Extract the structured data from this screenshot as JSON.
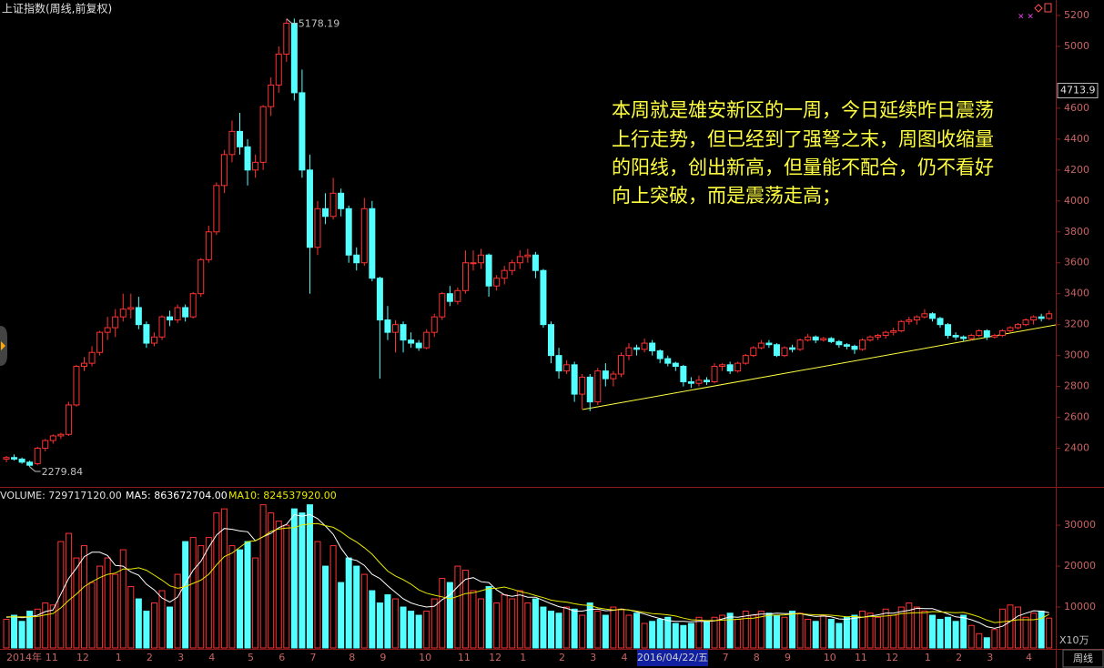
{
  "chart_data": {
    "type": "candlestick",
    "title": "上证指数(周线,前复权)",
    "categories": [
      "2014年",
      null,
      null,
      null,
      null,
      "11",
      null,
      null,
      null,
      "12",
      null,
      null,
      null,
      null,
      "1",
      null,
      null,
      null,
      "2",
      null,
      null,
      null,
      "3",
      null,
      null,
      null,
      "4",
      null,
      null,
      null,
      null,
      "5",
      null,
      null,
      null,
      "6",
      null,
      null,
      null,
      "7",
      null,
      null,
      null,
      null,
      "8",
      null,
      null,
      null,
      "9",
      null,
      null,
      null,
      null,
      "10",
      null,
      null,
      null,
      null,
      "11",
      null,
      null,
      null,
      "12",
      null,
      null,
      null,
      "1",
      null,
      null,
      null,
      null,
      "2",
      null,
      null,
      null,
      "3",
      null,
      null,
      null,
      "4",
      null,
      null,
      null,
      null,
      null,
      null,
      null,
      null,
      null,
      null,
      null,
      null,
      "7",
      null,
      null,
      null,
      "8",
      null,
      null,
      null,
      "9",
      null,
      null,
      null,
      null,
      "10",
      null,
      null,
      null,
      "11",
      null,
      null,
      null,
      "12",
      null,
      null,
      null,
      null,
      "1",
      null,
      null,
      null,
      "2",
      null,
      null,
      null,
      "3",
      null,
      null,
      null,
      null,
      "4",
      null,
      null,
      null
    ],
    "ohlc": [
      [
        2330,
        2350,
        2310,
        2340
      ],
      [
        2340,
        2360,
        2320,
        2330
      ],
      [
        2330,
        2340,
        2300,
        2310
      ],
      [
        2310,
        2320,
        2279.84,
        2290
      ],
      [
        2300,
        2410,
        2290,
        2400
      ],
      [
        2400,
        2460,
        2380,
        2450
      ],
      [
        2450,
        2490,
        2430,
        2480
      ],
      [
        2480,
        2500,
        2460,
        2490
      ],
      [
        2490,
        2700,
        2480,
        2680
      ],
      [
        2680,
        2940,
        2670,
        2930
      ],
      [
        2930,
        2990,
        2900,
        2950
      ],
      [
        2950,
        3060,
        2930,
        3020
      ],
      [
        3020,
        3160,
        3000,
        3150
      ],
      [
        3150,
        3250,
        3100,
        3180
      ],
      [
        3180,
        3300,
        3120,
        3250
      ],
      [
        3250,
        3400,
        3220,
        3300
      ],
      [
        3300,
        3400,
        3240,
        3310
      ],
      [
        3310,
        3380,
        3170,
        3200
      ],
      [
        3200,
        3220,
        3050,
        3080
      ],
      [
        3080,
        3150,
        3060,
        3120
      ],
      [
        3120,
        3260,
        3100,
        3250
      ],
      [
        3250,
        3290,
        3190,
        3230
      ],
      [
        3230,
        3330,
        3210,
        3310
      ],
      [
        3310,
        3330,
        3220,
        3250
      ],
      [
        3250,
        3410,
        3240,
        3400
      ],
      [
        3400,
        3630,
        3380,
        3620
      ],
      [
        3620,
        3840,
        3600,
        3800
      ],
      [
        3800,
        4120,
        3780,
        4100
      ],
      [
        4100,
        4330,
        4050,
        4300
      ],
      [
        4300,
        4520,
        4250,
        4450
      ],
      [
        4450,
        4570,
        4300,
        4350
      ],
      [
        4350,
        4400,
        4100,
        4200
      ],
      [
        4200,
        4300,
        4150,
        4250
      ],
      [
        4250,
        4620,
        4200,
        4610
      ],
      [
        4610,
        4800,
        4550,
        4750
      ],
      [
        4750,
        5000,
        4700,
        4950
      ],
      [
        4950,
        5178.19,
        4900,
        5150
      ],
      [
        5150,
        5180,
        4650,
        4700
      ],
      [
        4700,
        4850,
        4150,
        4200
      ],
      [
        4200,
        4300,
        3400,
        3700
      ],
      [
        3700,
        4000,
        3650,
        3950
      ],
      [
        3950,
        4050,
        3850,
        3900
      ],
      [
        3900,
        4150,
        3880,
        4050
      ],
      [
        4050,
        4080,
        3900,
        3950
      ],
      [
        3950,
        3970,
        3600,
        3650
      ],
      [
        3650,
        3700,
        3550,
        3600
      ],
      [
        3600,
        4020,
        3580,
        3950
      ],
      [
        3950,
        4000,
        3480,
        3500
      ],
      [
        3500,
        3510,
        2850,
        3230
      ],
      [
        3230,
        3320,
        3100,
        3150
      ],
      [
        3150,
        3230,
        3020,
        3200
      ],
      [
        3200,
        3220,
        3020,
        3100
      ],
      [
        3100,
        3150,
        3050,
        3080
      ],
      [
        3080,
        3100,
        3030,
        3050
      ],
      [
        3050,
        3170,
        3040,
        3150
      ],
      [
        3150,
        3270,
        3120,
        3250
      ],
      [
        3250,
        3410,
        3230,
        3400
      ],
      [
        3400,
        3450,
        3320,
        3350
      ],
      [
        3350,
        3440,
        3330,
        3420
      ],
      [
        3420,
        3680,
        3400,
        3600
      ],
      [
        3600,
        3680,
        3550,
        3600
      ],
      [
        3600,
        3690,
        3560,
        3650
      ],
      [
        3650,
        3660,
        3380,
        3450
      ],
      [
        3450,
        3520,
        3420,
        3500
      ],
      [
        3500,
        3580,
        3460,
        3550
      ],
      [
        3550,
        3620,
        3520,
        3600
      ],
      [
        3600,
        3680,
        3560,
        3640
      ],
      [
        3640,
        3690,
        3600,
        3650
      ],
      [
        3650,
        3670,
        3500,
        3550
      ],
      [
        3550,
        3560,
        3180,
        3200
      ],
      [
        3200,
        3220,
        2950,
        3000
      ],
      [
        3000,
        3050,
        2850,
        2900
      ],
      [
        2900,
        2970,
        2880,
        2940
      ],
      [
        2940,
        2960,
        2700,
        2750
      ],
      [
        2750,
        2880,
        2650,
        2860
      ],
      [
        2860,
        2880,
        2640,
        2700
      ],
      [
        2700,
        2920,
        2680,
        2900
      ],
      [
        2900,
        2950,
        2800,
        2850
      ],
      [
        2850,
        2900,
        2800,
        2880
      ],
      [
        2880,
        3020,
        2860,
        3000
      ],
      [
        3000,
        3080,
        2970,
        3050
      ],
      [
        3050,
        3070,
        3000,
        3040
      ],
      [
        3040,
        3110,
        3020,
        3080
      ],
      [
        3080,
        3100,
        3000,
        3030
      ],
      [
        3030,
        3040,
        2950,
        2980
      ],
      [
        2980,
        3000,
        2930,
        2950
      ],
      [
        2950,
        2960,
        2900,
        2930
      ],
      [
        2930,
        2940,
        2800,
        2830
      ],
      [
        2830,
        2860,
        2790,
        2820
      ],
      [
        2820,
        2870,
        2800,
        2840
      ],
      [
        2840,
        2860,
        2810,
        2830
      ],
      [
        2830,
        2950,
        2820,
        2930
      ],
      [
        2930,
        2950,
        2900,
        2940
      ],
      [
        2940,
        2960,
        2880,
        2900
      ],
      [
        2900,
        2960,
        2890,
        2950
      ],
      [
        2950,
        3010,
        2940,
        3000
      ],
      [
        3000,
        3060,
        2990,
        3050
      ],
      [
        3050,
        3100,
        3040,
        3080
      ],
      [
        3080,
        3100,
        3050,
        3070
      ],
      [
        3070,
        3080,
        2990,
        3000
      ],
      [
        3000,
        3060,
        2990,
        3050
      ],
      [
        3050,
        3070,
        3020,
        3040
      ],
      [
        3040,
        3110,
        3030,
        3100
      ],
      [
        3100,
        3140,
        3090,
        3120
      ],
      [
        3120,
        3130,
        3080,
        3100
      ],
      [
        3100,
        3120,
        3090,
        3110
      ],
      [
        3110,
        3120,
        3080,
        3090
      ],
      [
        3090,
        3100,
        3050,
        3070
      ],
      [
        3070,
        3080,
        3040,
        3060
      ],
      [
        3060,
        3070,
        3010,
        3040
      ],
      [
        3040,
        3110,
        3030,
        3100
      ],
      [
        3100,
        3130,
        3090,
        3120
      ],
      [
        3120,
        3140,
        3100,
        3130
      ],
      [
        3130,
        3160,
        3110,
        3150
      ],
      [
        3150,
        3180,
        3130,
        3160
      ],
      [
        3160,
        3230,
        3150,
        3220
      ],
      [
        3220,
        3250,
        3200,
        3230
      ],
      [
        3230,
        3260,
        3200,
        3250
      ],
      [
        3250,
        3300,
        3240,
        3270
      ],
      [
        3270,
        3280,
        3220,
        3240
      ],
      [
        3240,
        3250,
        3180,
        3200
      ],
      [
        3200,
        3210,
        3110,
        3130
      ],
      [
        3130,
        3150,
        3100,
        3120
      ],
      [
        3120,
        3130,
        3090,
        3110
      ],
      [
        3110,
        3140,
        3100,
        3130
      ],
      [
        3130,
        3170,
        3120,
        3160
      ],
      [
        3160,
        3170,
        3100,
        3120
      ],
      [
        3120,
        3140,
        3110,
        3130
      ],
      [
        3130,
        3170,
        3120,
        3160
      ],
      [
        3160,
        3190,
        3150,
        3180
      ],
      [
        3180,
        3210,
        3170,
        3200
      ],
      [
        3200,
        3240,
        3190,
        3230
      ],
      [
        3230,
        3260,
        3200,
        3250
      ],
      [
        3250,
        3270,
        3220,
        3240
      ],
      [
        3240,
        3290,
        3230,
        3270
      ]
    ],
    "up_color": "#ff3232",
    "down_color": "#54ffff",
    "ylim": [
      2150,
      5300
    ],
    "yticks": [
      2400,
      2600,
      2800,
      3000,
      3200,
      3400,
      3600,
      3800,
      4000,
      4200,
      4400,
      4600,
      5000,
      5200
    ],
    "cursor_label": "2016/04/22/五",
    "cursor_price": 4713.9,
    "period_tab": "周线",
    "annotation": [
      "本周就是雄安新区的一周，今日延续昨日震荡",
      "上行走势，但已经到了强弩之末，周图收缩量",
      "的阳线，创出新高，但量能不配合，仍不看好",
      "向上突破，而是震荡走高；"
    ],
    "volume": {
      "header": [
        "VOLUME: 729717120.00",
        "MA5: 863672704.00",
        "MA10: 824537920.00"
      ],
      "unit": "X10万",
      "ylim": [
        0,
        38700
      ],
      "yticks": [
        10000,
        20000,
        30000
      ],
      "values": [
        7000,
        8000,
        6500,
        9000,
        9500,
        11000,
        10500,
        26000,
        28000,
        22000,
        25000,
        16000,
        20000,
        22000,
        18000,
        24000,
        15000,
        12000,
        9000,
        11000,
        14000,
        10000,
        18000,
        26000,
        27000,
        25000,
        27000,
        33000,
        34000,
        25000,
        24000,
        26000,
        22000,
        35000,
        33000,
        31000,
        30000,
        34000,
        33000,
        35000,
        26000,
        20000,
        25000,
        16000,
        22000,
        20000,
        18000,
        14000,
        11000,
        13000,
        12000,
        10000,
        9000,
        8000,
        9000,
        12000,
        17000,
        16000,
        20000,
        19000,
        14000,
        12000,
        15000,
        11000,
        13000,
        12000,
        14000,
        11000,
        12000,
        10000,
        9000,
        8500,
        10000,
        9500,
        8000,
        11000,
        9000,
        8000,
        10000,
        9500,
        8000,
        8500,
        6000,
        6500,
        7000,
        7500,
        6000,
        5500,
        6000,
        7500,
        6500,
        7500,
        8000,
        8500,
        7000,
        9000,
        8000,
        9000,
        8500,
        8000,
        7500,
        9000,
        8500,
        7000,
        6500,
        8000,
        7000,
        6000,
        7500,
        8000,
        9000,
        8500,
        7500,
        9500,
        8000,
        10000,
        11000,
        10000,
        9000,
        8000,
        7000,
        7500,
        6500,
        8000,
        5500,
        3500,
        2500,
        4500,
        9500,
        10500,
        10000,
        7500,
        8500,
        9000,
        7297.1712
      ],
      "ma5": {
        "color": "#ffffff",
        "values": [
          7500,
          7600,
          7400,
          7600,
          8000,
          8900,
          9300,
          13200,
          17000,
          19500,
          22300,
          23400,
          23400,
          22600,
          20200,
          20000,
          18600,
          17800,
          15600,
          14200,
          12200,
          11200,
          12400,
          15800,
          19000,
          21200,
          24600,
          27600,
          29200,
          29000,
          28600,
          28400,
          26200,
          27200,
          28000,
          29400,
          30200,
          32600,
          32200,
          32600,
          31600,
          29800,
          27800,
          24400,
          21800,
          21400,
          20200,
          18000,
          17000,
          15200,
          13600,
          12000,
          11000,
          10400,
          10000,
          10200,
          11800,
          13000,
          15000,
          16800,
          17200,
          16200,
          16000,
          14200,
          13000,
          12600,
          13000,
          12400,
          12400,
          11600,
          10800,
          10100,
          9700,
          9000,
          9000,
          9400,
          9500,
          9100,
          9200,
          9500,
          9300,
          8800,
          8300,
          7700,
          7200,
          6700,
          6500,
          6500,
          6400,
          6500,
          6500,
          6600,
          7100,
          7600,
          7500,
          7800,
          8100,
          8300,
          8300,
          8500,
          8400,
          8400,
          8400,
          8000,
          7700,
          7800,
          7600,
          7100,
          7000,
          7300,
          7500,
          7800,
          8100,
          8500,
          8500,
          8900,
          9200,
          9700,
          9600,
          9600,
          9000,
          8300,
          7600,
          7400,
          6900,
          6200,
          5200,
          4800,
          5300,
          6500,
          7800,
          8500,
          9100,
          9000,
          8636.72704
        ]
      },
      "ma10": {
        "color": "#e8e800",
        "values": [
          7600,
          7600,
          7600,
          7600,
          7700,
          8100,
          8400,
          9800,
          11600,
          13200,
          15000,
          16200,
          17200,
          18000,
          18300,
          19300,
          19300,
          19600,
          19000,
          17800,
          16600,
          15200,
          14600,
          15000,
          15800,
          16600,
          18000,
          20300,
          22300,
          23200,
          24600,
          26000,
          26200,
          27200,
          28500,
          29100,
          29300,
          29400,
          30100,
          30300,
          30400,
          29900,
          29500,
          28400,
          27000,
          25900,
          24500,
          22900,
          20800,
          18800,
          17600,
          16700,
          15600,
          14200,
          13400,
          12900,
          12500,
          12000,
          12600,
          13300,
          13500,
          14000,
          14500,
          14600,
          14900,
          14400,
          13800,
          13400,
          12800,
          12300,
          11700,
          11400,
          11200,
          10800,
          10500,
          10400,
          9800,
          9500,
          9300,
          9400,
          9300,
          9000,
          8700,
          8400,
          8300,
          8100,
          7800,
          7300,
          6900,
          6800,
          6700,
          6700,
          6800,
          6900,
          7000,
          7200,
          7300,
          7600,
          8000,
          8000,
          8100,
          8300,
          8400,
          8200,
          8100,
          8100,
          8000,
          7800,
          7600,
          7700,
          7500,
          7700,
          7700,
          7800,
          8000,
          8400,
          8500,
          8600,
          8600,
          8900,
          8800,
          8700,
          8600,
          8700,
          8200,
          7600,
          6800,
          6200,
          6400,
          6600,
          6900,
          6900,
          6900,
          7200,
          8245.3792
        ]
      }
    }
  }
}
